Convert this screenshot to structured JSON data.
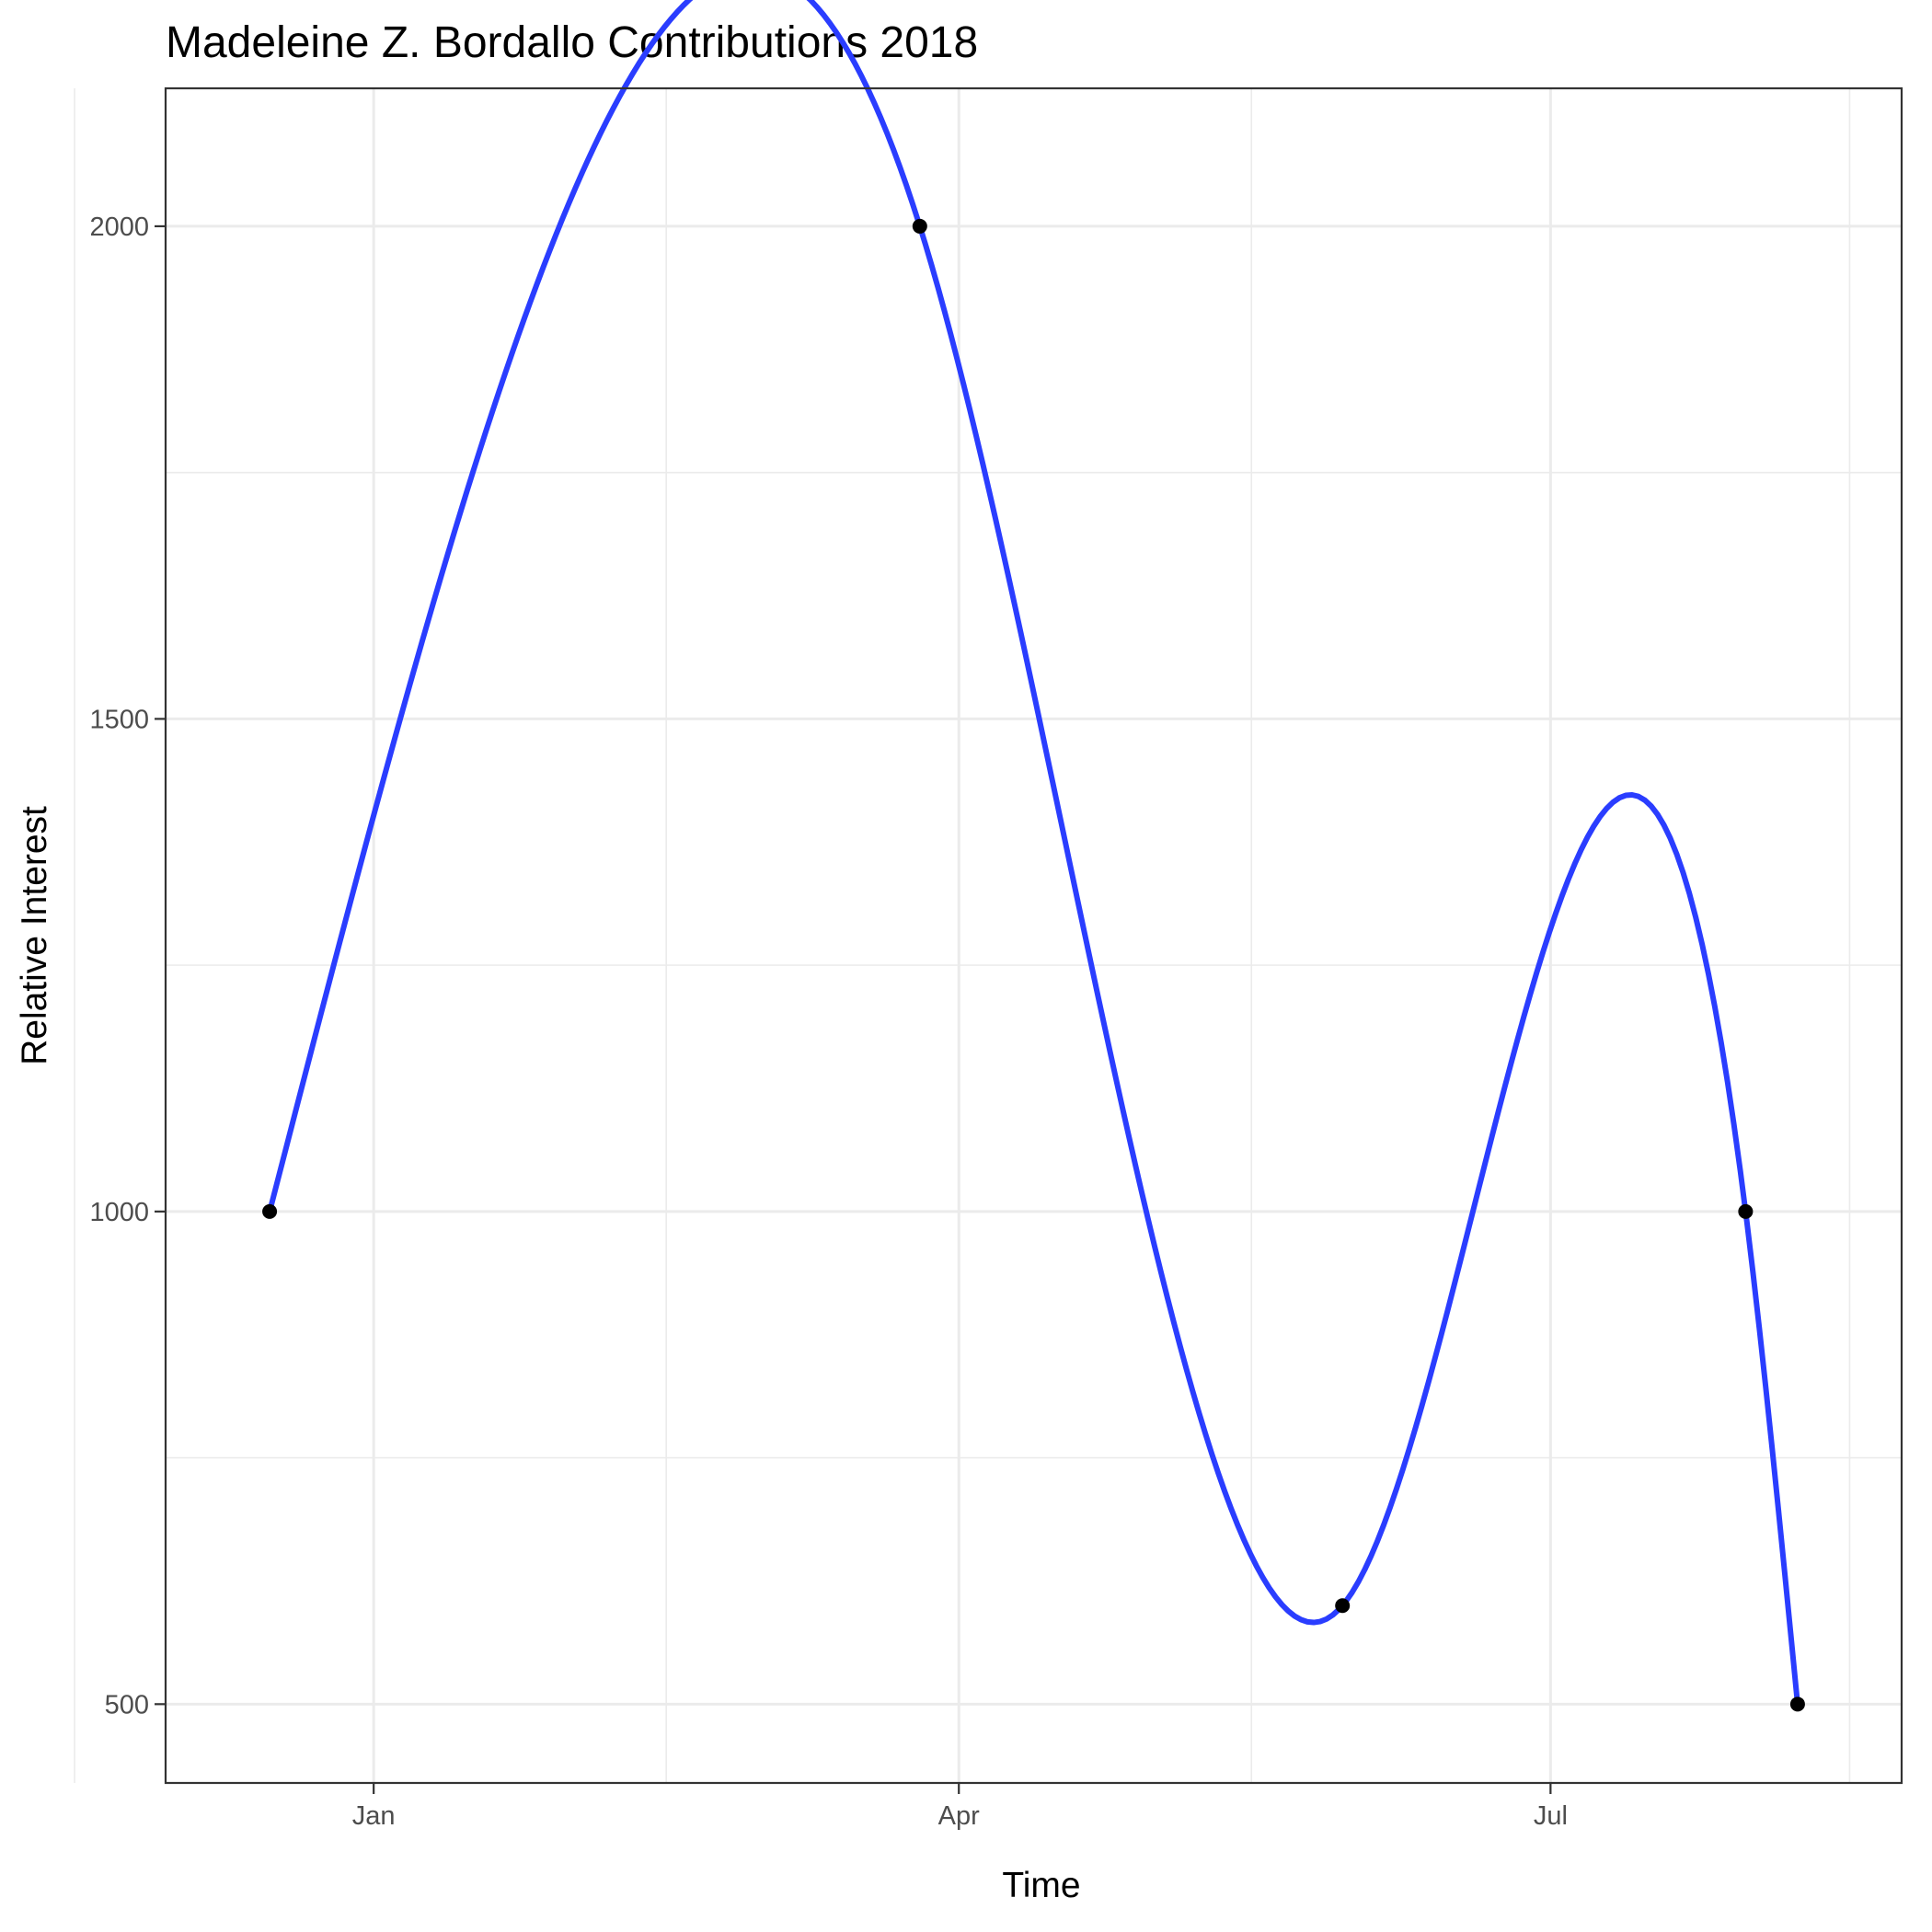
{
  "chart_data": {
    "type": "line",
    "title": "Madeleine Z. Bordallo Contributions 2018",
    "xlabel": "Time",
    "ylabel": "Relative Interest",
    "points": [
      {
        "x": "2017-12-16",
        "y": 1000
      },
      {
        "x": "2018-03-26",
        "y": 2000
      },
      {
        "x": "2018-05-30",
        "y": 600
      },
      {
        "x": "2018-07-31",
        "y": 1000
      },
      {
        "x": "2018-08-08",
        "y": 500
      }
    ],
    "x_ticks": [
      {
        "date": "2018-01-01",
        "label": "Jan"
      },
      {
        "date": "2018-04-01",
        "label": "Apr"
      },
      {
        "date": "2018-07-01",
        "label": "Jul"
      }
    ],
    "x_minor_ticks": [
      "2017-11-16",
      "2018-02-15",
      "2018-05-16",
      "2018-08-16"
    ],
    "y_ticks": [
      500,
      1000,
      1500,
      2000
    ],
    "y_minor_ticks": [
      750,
      1250,
      1750
    ],
    "xlim": [
      "2017-11-30",
      "2018-08-24"
    ],
    "ylim": [
      420,
      2140
    ],
    "grid": true,
    "colors": {
      "line": "#2a3dff",
      "points": "#000000"
    }
  }
}
